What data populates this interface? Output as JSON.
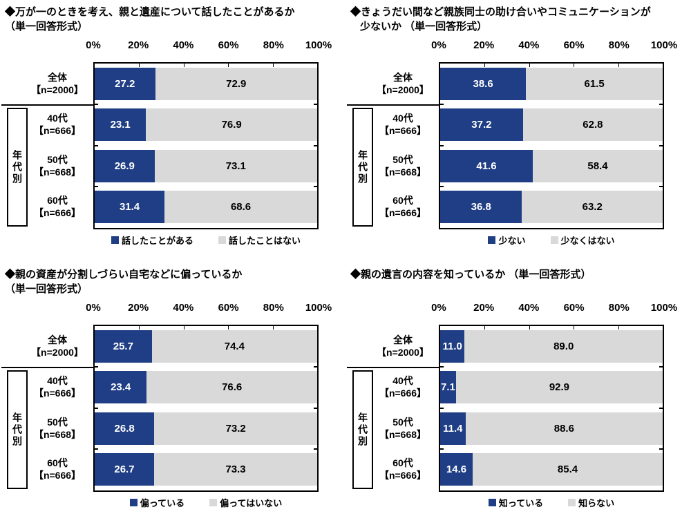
{
  "colors": {
    "primary": "#1F3E85",
    "secondary": "#D9D9D9",
    "text": "#000000",
    "bar_text_on_primary": "#FFFFFF"
  },
  "axis_ticks": [
    "0%",
    "20%",
    "40%",
    "60%",
    "80%",
    "100%"
  ],
  "group_label": "年代別",
  "chart_data": [
    {
      "type": "bar",
      "stacked": true,
      "orientation": "horizontal",
      "title_line1": "◆万が一のときを考え、親と遺産について話したことがあるか",
      "title_line2": "（単一回答形式）",
      "xlim": [
        0,
        100
      ],
      "x_ticks": [
        "0%",
        "20%",
        "40%",
        "60%",
        "80%",
        "100%"
      ],
      "legend": [
        "話したことがある",
        "話したことはない"
      ],
      "rows": [
        {
          "category": "全体",
          "n": "【n=2000】",
          "v1": 27.2,
          "v2": 72.9,
          "v1_label": "27.2",
          "v2_label": "72.9"
        },
        {
          "category": "40代",
          "n": "【n=666】",
          "v1": 23.1,
          "v2": 76.9,
          "v1_label": "23.1",
          "v2_label": "76.9"
        },
        {
          "category": "50代",
          "n": "【n=668】",
          "v1": 26.9,
          "v2": 73.1,
          "v1_label": "26.9",
          "v2_label": "73.1"
        },
        {
          "category": "60代",
          "n": "【n=666】",
          "v1": 31.4,
          "v2": 68.6,
          "v1_label": "31.4",
          "v2_label": "68.6"
        }
      ]
    },
    {
      "type": "bar",
      "stacked": true,
      "orientation": "horizontal",
      "title_line1": "◆きょうだい間など親族同士の助け合いやコミュニケーションが",
      "title_line2": "少ないか （単一回答形式）",
      "xlim": [
        0,
        100
      ],
      "x_ticks": [
        "0%",
        "20%",
        "40%",
        "60%",
        "80%",
        "100%"
      ],
      "legend": [
        "少ない",
        "少なくはない"
      ],
      "rows": [
        {
          "category": "全体",
          "n": "【n=2000】",
          "v1": 38.6,
          "v2": 61.5,
          "v1_label": "38.6",
          "v2_label": "61.5"
        },
        {
          "category": "40代",
          "n": "【n=666】",
          "v1": 37.2,
          "v2": 62.8,
          "v1_label": "37.2",
          "v2_label": "62.8"
        },
        {
          "category": "50代",
          "n": "【n=668】",
          "v1": 41.6,
          "v2": 58.4,
          "v1_label": "41.6",
          "v2_label": "58.4"
        },
        {
          "category": "60代",
          "n": "【n=666】",
          "v1": 36.8,
          "v2": 63.2,
          "v1_label": "36.8",
          "v2_label": "63.2"
        }
      ]
    },
    {
      "type": "bar",
      "stacked": true,
      "orientation": "horizontal",
      "title_line1": "◆親の資産が分割しづらい自宅などに偏っているか",
      "title_line2": "（単一回答形式）",
      "xlim": [
        0,
        100
      ],
      "x_ticks": [
        "0%",
        "20%",
        "40%",
        "60%",
        "80%",
        "100%"
      ],
      "legend": [
        "偏っている",
        "偏ってはいない"
      ],
      "rows": [
        {
          "category": "全体",
          "n": "【n=2000】",
          "v1": 25.7,
          "v2": 74.4,
          "v1_label": "25.7",
          "v2_label": "74.4"
        },
        {
          "category": "40代",
          "n": "【n=666】",
          "v1": 23.4,
          "v2": 76.6,
          "v1_label": "23.4",
          "v2_label": "76.6"
        },
        {
          "category": "50代",
          "n": "【n=668】",
          "v1": 26.8,
          "v2": 73.2,
          "v1_label": "26.8",
          "v2_label": "73.2"
        },
        {
          "category": "60代",
          "n": "【n=666】",
          "v1": 26.7,
          "v2": 73.3,
          "v1_label": "26.7",
          "v2_label": "73.3"
        }
      ]
    },
    {
      "type": "bar",
      "stacked": true,
      "orientation": "horizontal",
      "title_line1": "◆親の遺言の内容を知っているか （単一回答形式）",
      "title_line2": "",
      "xlim": [
        0,
        100
      ],
      "x_ticks": [
        "0%",
        "20%",
        "40%",
        "60%",
        "80%",
        "100%"
      ],
      "legend": [
        "知っている",
        "知らない"
      ],
      "rows": [
        {
          "category": "全体",
          "n": "【n=2000】",
          "v1": 11.0,
          "v2": 89.0,
          "v1_label": "11.0",
          "v2_label": "89.0"
        },
        {
          "category": "40代",
          "n": "【n=666】",
          "v1": 7.1,
          "v2": 92.9,
          "v1_label": "7.1",
          "v2_label": "92.9"
        },
        {
          "category": "50代",
          "n": "【n=668】",
          "v1": 11.4,
          "v2": 88.6,
          "v1_label": "11.4",
          "v2_label": "88.6"
        },
        {
          "category": "60代",
          "n": "【n=666】",
          "v1": 14.6,
          "v2": 85.4,
          "v1_label": "14.6",
          "v2_label": "85.4"
        }
      ]
    }
  ]
}
